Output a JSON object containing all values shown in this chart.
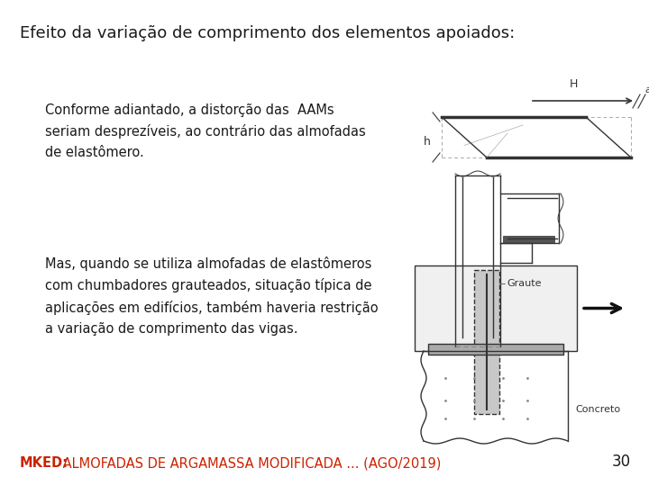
{
  "title": "Efeito da variação de comprimento dos elementos apoiados:",
  "title_fontsize": 13,
  "title_color": "#1a1a1a",
  "para1_lines": [
    "Conforme adiantado, a distorção das  AAMs",
    "seriam desprezíveis, ao contrário das almofadas",
    "de elastômero."
  ],
  "para1_fontsize": 10.5,
  "para2_lines": [
    "Mas, quando se utiliza almofadas de elastômeros",
    "com chumbadores grauteados, situação típica de",
    "aplicações em edifícios, também haveria restrição",
    "a variação de comprimento das vigas."
  ],
  "para2_fontsize": 10.5,
  "footer_prefix": "MKED:",
  "footer_rest": " ALMOFADAS DE ARGAMASSA MODIFICADA ... (AGO/2019)",
  "footer_prefix_color": "#cc2200",
  "footer_rest_color": "#cc2200",
  "footer_fontsize": 10.5,
  "page_number": "30",
  "page_number_fontsize": 12,
  "background_color": "#ffffff",
  "text_color": "#1a1a1a"
}
